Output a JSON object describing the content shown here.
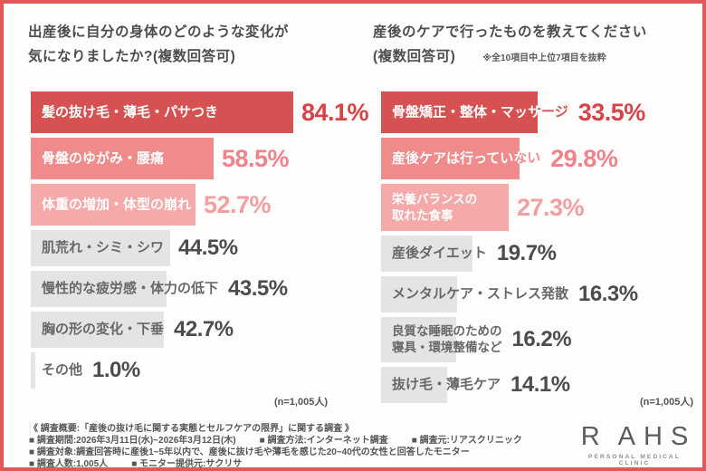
{
  "frame": {
    "border_color": "#e25757",
    "background": "#fffefd"
  },
  "palette": {
    "t1": {
      "bar": "#d65151",
      "text": "#d64348"
    },
    "t2": {
      "bar": "#f08b8b",
      "text": "#ef838b"
    },
    "t3": {
      "bar": "#f5a9a9",
      "text": "#f39fa2"
    },
    "gray": {
      "bar": "#e4e4e4",
      "label": "#686868",
      "text": "#4c4c4c"
    }
  },
  "chart_data": [
    {
      "type": "bar",
      "orientation": "horizontal",
      "unit": "%",
      "xlim": [
        0,
        100
      ],
      "title_lines": [
        "出産後に自分の身体のどのような変化が",
        "気になりましたか?(複数回答可)"
      ],
      "n_label": "(n=1,005人)",
      "items": [
        {
          "label_lines": [
            "髪の抜け毛・薄毛・パサつき"
          ],
          "value": 84.1,
          "display": "84.1%",
          "tier": "t1"
        },
        {
          "label_lines": [
            "骨盤のゆがみ・腰痛"
          ],
          "value": 58.5,
          "display": "58.5%",
          "tier": "t2"
        },
        {
          "label_lines": [
            "体重の増加・体型の崩れ"
          ],
          "value": 52.7,
          "display": "52.7%",
          "tier": "t3"
        },
        {
          "label_lines": [
            "肌荒れ・シミ・シワ"
          ],
          "value": 44.5,
          "display": "44.5%",
          "tier": "gray"
        },
        {
          "label_lines": [
            "慢性的な疲労感・体力の低下"
          ],
          "value": 43.5,
          "display": "43.5%",
          "tier": "gray"
        },
        {
          "label_lines": [
            "胸の形の変化・下垂"
          ],
          "value": 42.7,
          "display": "42.7%",
          "tier": "gray"
        },
        {
          "label_lines": [
            "その他"
          ],
          "value": 1.0,
          "display": "1.0%",
          "tier": "gray"
        }
      ]
    },
    {
      "type": "bar",
      "orientation": "horizontal",
      "unit": "%",
      "xlim": [
        0,
        100
      ],
      "title_lines": [
        "産後のケアで行ったものを教えてください",
        "(複数回答可)"
      ],
      "note": "※全10項目中上位7項目を抜粋",
      "n_label": "(n=1,005人)",
      "items": [
        {
          "label_lines": [
            "骨盤矯正・整体・マッサージ"
          ],
          "value": 33.5,
          "display": "33.5%",
          "tier": "t1"
        },
        {
          "label_lines": [
            "産後ケアは行っていない"
          ],
          "value": 29.8,
          "display": "29.8%",
          "tier": "t2"
        },
        {
          "label_lines": [
            "栄養バランスの",
            "取れた食事"
          ],
          "value": 27.3,
          "display": "27.3%",
          "tier": "t3"
        },
        {
          "label_lines": [
            "産後ダイエット"
          ],
          "value": 19.7,
          "display": "19.7%",
          "tier": "gray"
        },
        {
          "label_lines": [
            "メンタルケア・ストレス発散"
          ],
          "value": 16.3,
          "display": "16.3%",
          "tier": "gray"
        },
        {
          "label_lines": [
            "良質な睡眠のための",
            "寝具・環境整備など"
          ],
          "value": 16.2,
          "display": "16.2%",
          "tier": "gray"
        },
        {
          "label_lines": [
            "抜け毛・薄毛ケア"
          ],
          "value": 14.1,
          "display": "14.1%",
          "tier": "gray"
        }
      ]
    }
  ],
  "survey_info": {
    "heading": "《 調査概要:「産後の抜け毛に関する実態とセルフケアの限界」に関する調査 》",
    "lines": [
      [
        "■ 調査期間:2026年3月11日(水)~2026年3月12日(木)",
        "■ 調査方法:インターネット調査",
        "■ 調査元:リアスクリニック"
      ],
      [
        "■ 調査対象:調査回答時に産後1~5年以内で、産後に抜け毛や薄毛を感じた20~40代の女性と回答したモニター"
      ],
      [
        "■ 調査人数:1,005人",
        "■ モニター提供元:サクリサ"
      ]
    ]
  },
  "logo": {
    "text_left": "R",
    "text_a": "A",
    "text_h": "H",
    "text_s": "S",
    "subtitle": "PERSONAL MEDICAL CLINIC",
    "accent_color": "#c99d4c"
  }
}
